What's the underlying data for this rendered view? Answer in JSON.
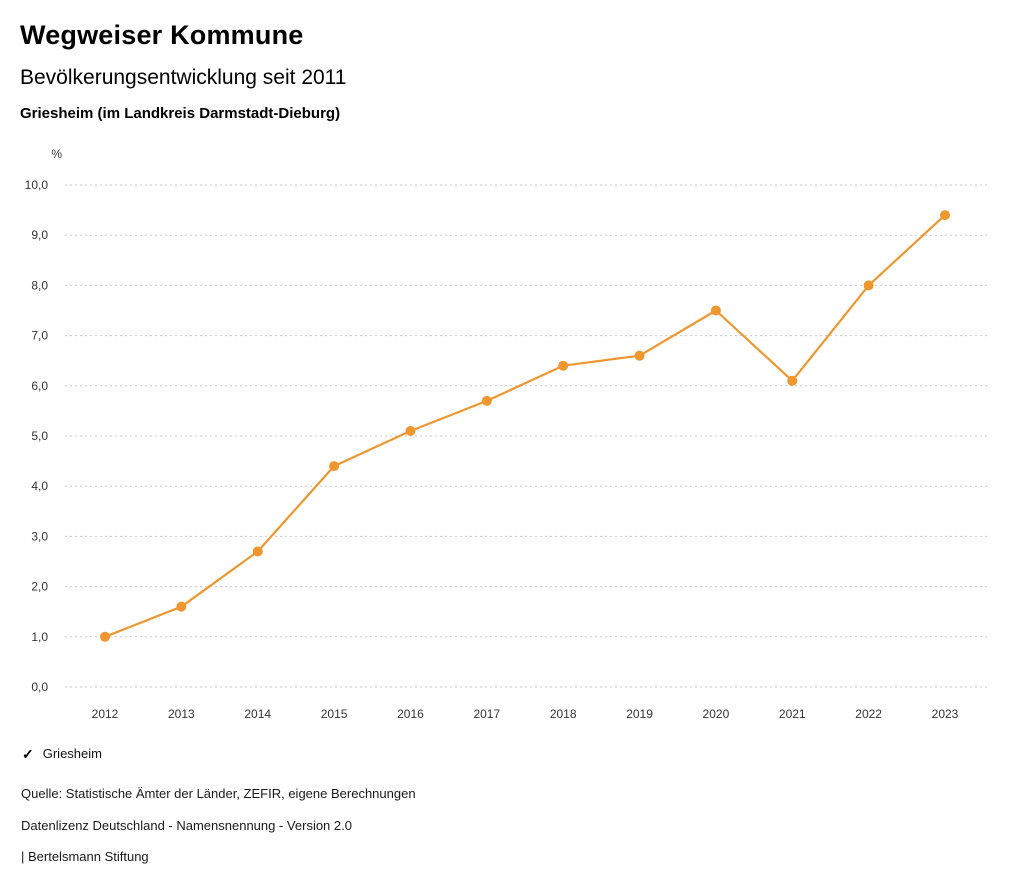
{
  "header": {
    "title": "Wegweiser Kommune",
    "subtitle": "Bevölkerungsentwicklung seit 2011",
    "region": "Griesheim (im Landkreis Darmstadt-Dieburg)"
  },
  "chart_data": {
    "type": "line",
    "title": "Bevölkerungsentwicklung seit 2011",
    "unit_label": "%",
    "x": [
      2012,
      2013,
      2014,
      2015,
      2016,
      2017,
      2018,
      2019,
      2020,
      2021,
      2022,
      2023
    ],
    "series": [
      {
        "name": "Griesheim",
        "color": "#F0962E",
        "values": [
          1.0,
          1.6,
          2.7,
          4.4,
          5.1,
          5.7,
          6.4,
          6.6,
          7.5,
          6.1,
          8.0,
          9.4
        ]
      }
    ],
    "ylim": [
      0,
      10
    ],
    "ytick_step": 1,
    "ytick_labels": [
      "0,0",
      "1,0",
      "2,0",
      "3,0",
      "4,0",
      "5,0",
      "6,0",
      "7,0",
      "8,0",
      "9,0",
      "10,0"
    ],
    "grid": "dotted-horizontal",
    "legend_position": "bottom-left"
  },
  "legend": {
    "items": [
      {
        "label": "Griesheim",
        "checked": true,
        "color": "#F0962E",
        "check_glyph": "✓"
      }
    ]
  },
  "footer": {
    "source": "Quelle: Statistische Ämter der Länder, ZEFIR, eigene Berechnungen",
    "license": "Datenlizenz Deutschland - Namensnennung - Version 2.0",
    "attribution": "| Bertelsmann Stiftung"
  }
}
